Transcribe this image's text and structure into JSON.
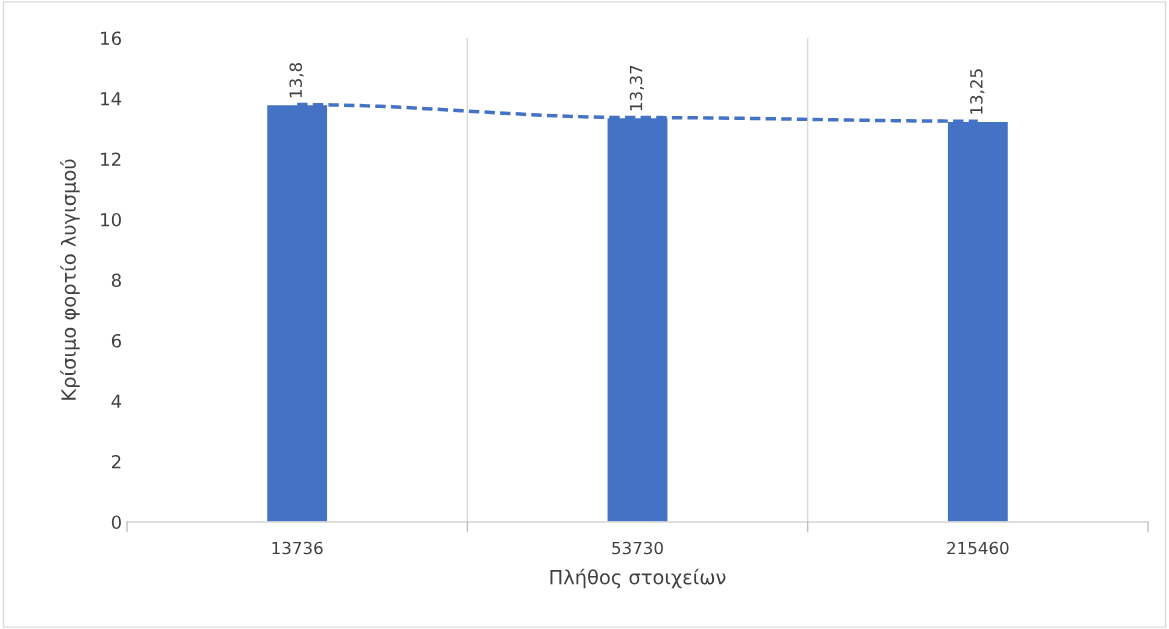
{
  "chart_data": {
    "type": "bar",
    "xlabel": "Πλήθος στοιχείων",
    "ylabel": "Κρίσιμο φορτίο λυγισμού",
    "categories": [
      "13736",
      "53730",
      "215460"
    ],
    "series": [
      {
        "color": "#4472c4",
        "values": [
          13.8,
          13.37,
          13.25
        ],
        "value_labels": [
          "13,8",
          "13,37",
          "13,25"
        ]
      },
      {
        "type": "line",
        "color": "#4472c4",
        "line_style": "dashed",
        "values": [
          13.8,
          13.37,
          13.25
        ]
      }
    ],
    "ylim": [
      0,
      16
    ],
    "yticks": [
      0,
      2,
      4,
      6,
      8,
      10,
      12,
      14,
      16
    ],
    "grid": "x"
  }
}
